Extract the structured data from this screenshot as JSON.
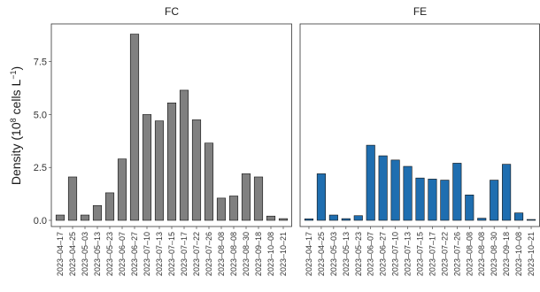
{
  "chart_data": {
    "type": "bar",
    "ylabel_main": "Density (10",
    "ylabel_exp1": "8",
    "ylabel_mid": " cells L",
    "ylabel_exp2": "−1",
    "ylabel_end": ")",
    "ylim": [
      0,
      9.2
    ],
    "yticks": [
      0.0,
      2.5,
      5.0,
      7.5
    ],
    "ytick_labels": [
      "0.0",
      "2.5",
      "5.0",
      "7.5"
    ],
    "categories": [
      "2023–04–17",
      "2023–04–25",
      "2023–05–03",
      "2023–05–13",
      "2023–05–23",
      "2023–06–07",
      "2023–06–27",
      "2023–07–10",
      "2023–07–13",
      "2023–07–15",
      "2023–07–17",
      "2023–07–22",
      "2023–07–26",
      "2023–08–08",
      "2023–08–08",
      "2023–08–30",
      "2023–09–18",
      "2023–10–08",
      "2023–10–21"
    ],
    "panels": [
      {
        "title": "FC",
        "color": "#808080",
        "values": [
          0.25,
          2.05,
          0.25,
          0.7,
          1.3,
          2.9,
          8.8,
          5.0,
          4.7,
          5.55,
          6.15,
          4.75,
          3.65,
          1.05,
          1.15,
          2.2,
          2.05,
          0.2,
          0.08
        ]
      },
      {
        "title": "FE",
        "color": "#1f6eb0",
        "values": [
          0.07,
          2.2,
          0.25,
          0.08,
          0.22,
          3.55,
          3.05,
          2.85,
          2.55,
          2.0,
          1.95,
          1.9,
          2.7,
          1.2,
          0.1,
          1.9,
          2.65,
          0.35,
          0.04
        ]
      }
    ]
  }
}
